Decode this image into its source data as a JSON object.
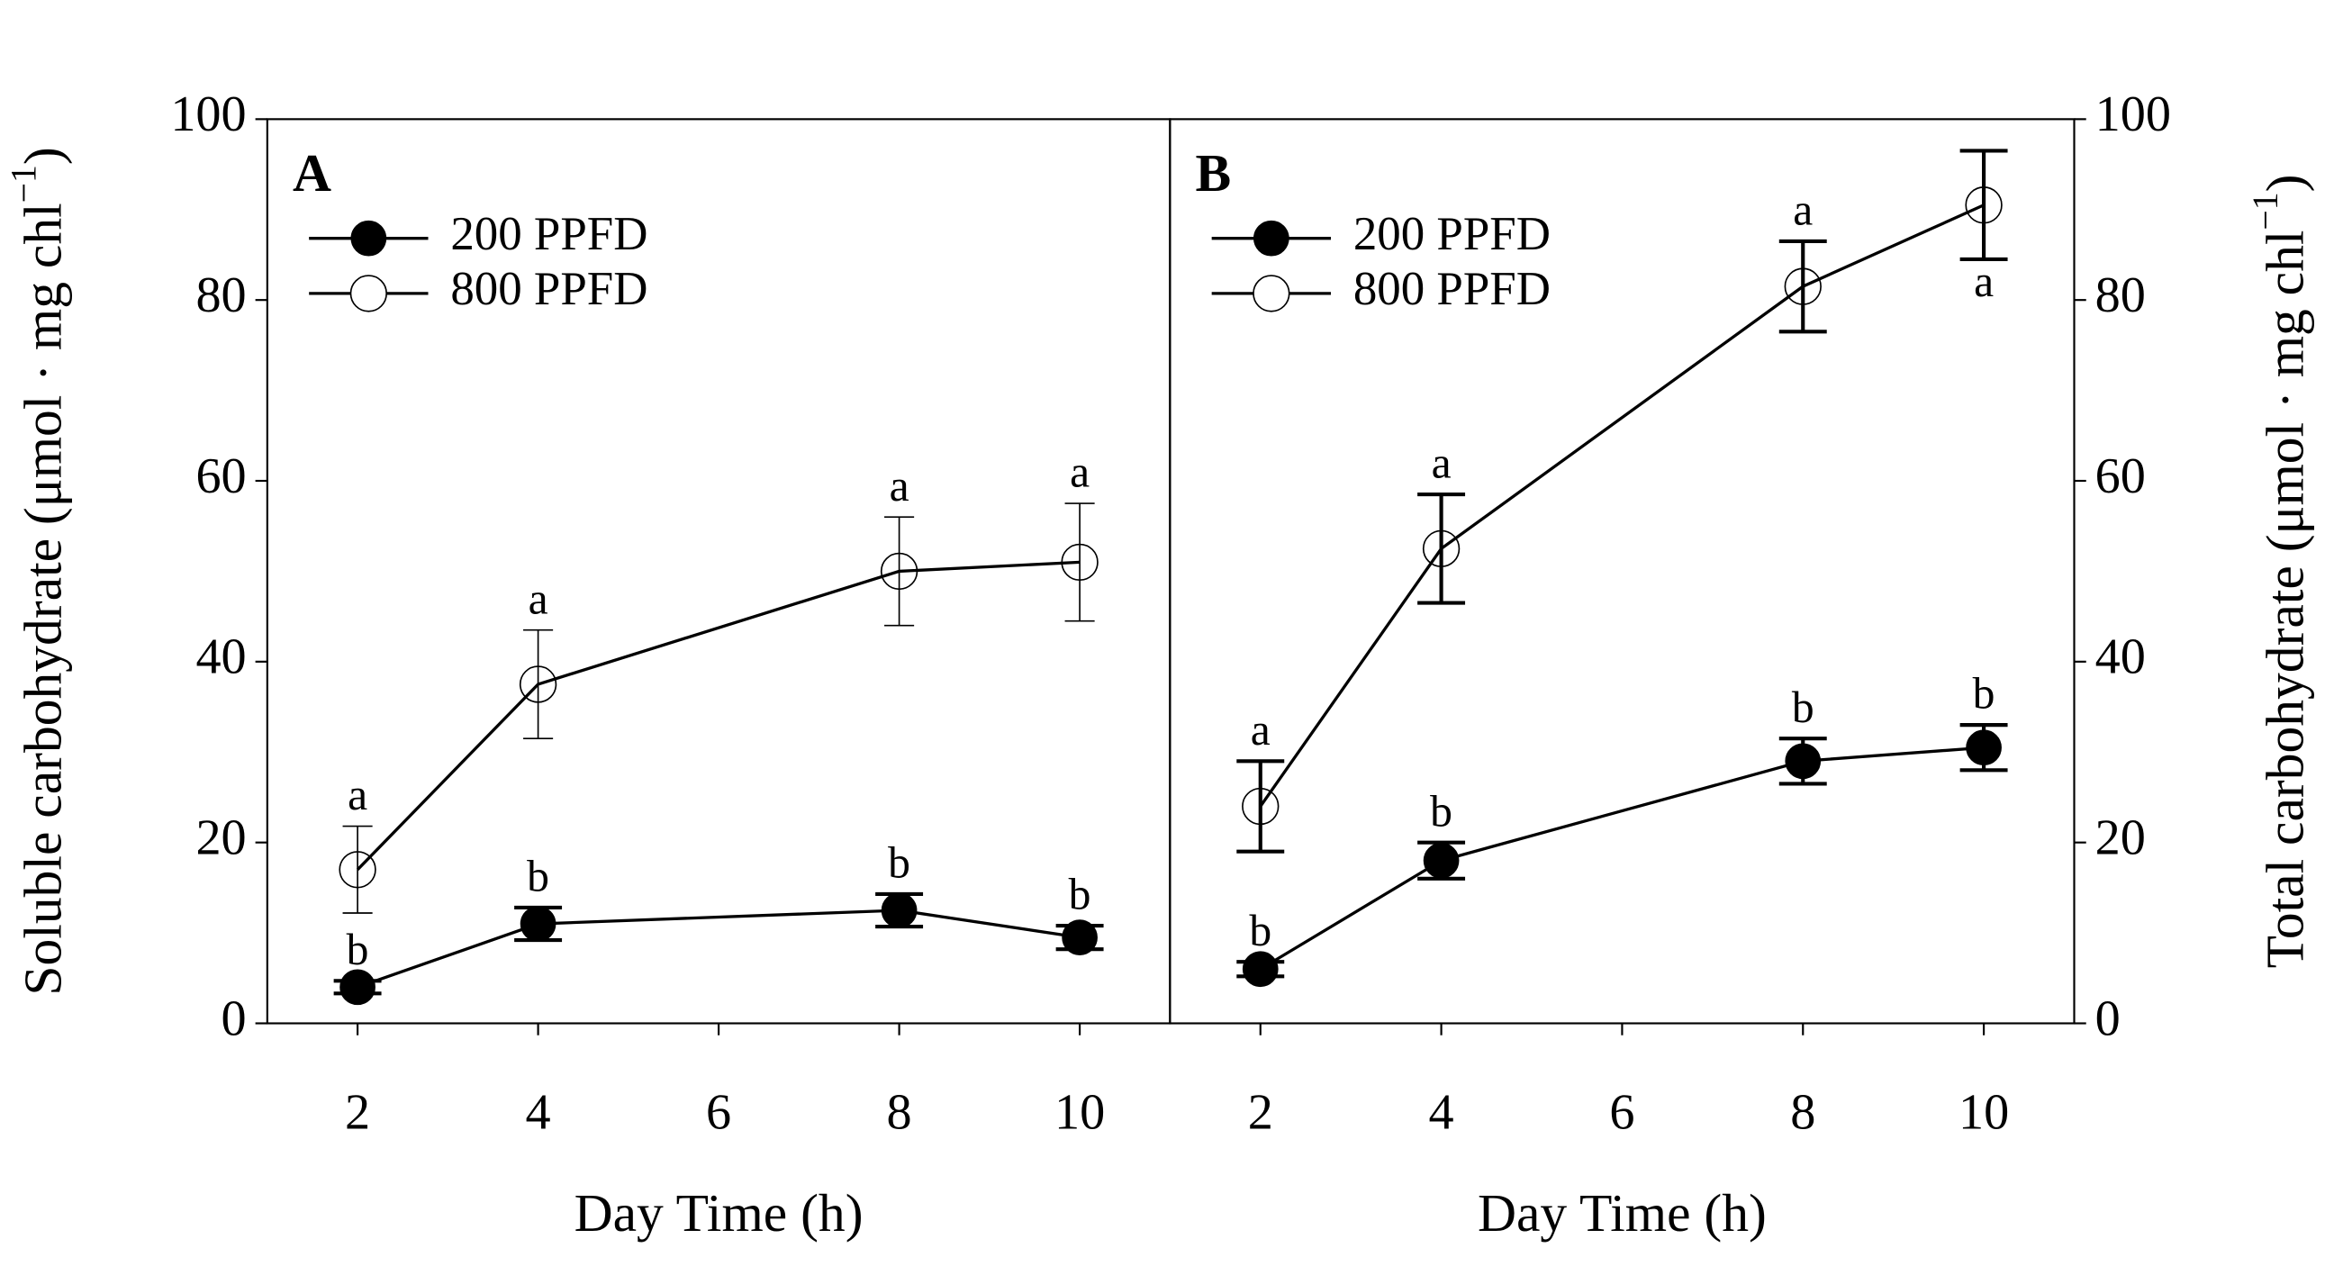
{
  "chart_data": [
    {
      "type": "line",
      "panel_label": "A",
      "xlabel": "Day Time (h)",
      "ylabel": "Soluble carbohydrate (μmol · mg chl",
      "ylabel_superscript": "−1",
      "y_axis_side": "left",
      "legend": "upper left",
      "x": [
        2,
        4,
        8,
        10
      ],
      "xlim": [
        1,
        11
      ],
      "xticks": [
        2,
        4,
        6,
        8,
        10
      ],
      "ylim": [
        0,
        100
      ],
      "yticks": [
        0,
        20,
        40,
        60,
        80,
        100
      ],
      "series": [
        {
          "name": "200 PPFD",
          "color": "#000000",
          "marker": "filled",
          "values": [
            4,
            11,
            12.5,
            9.5
          ],
          "errors": [
            0.7,
            1.8,
            1.8,
            1.3
          ],
          "letters": [
            "b",
            "b",
            "b",
            "b"
          ]
        },
        {
          "name": "800 PPFD",
          "color": "#000000",
          "marker": "open",
          "values": [
            17,
            37.5,
            50,
            51
          ],
          "errors": [
            4.8,
            6,
            6,
            6.5
          ],
          "letters": [
            "a",
            "a",
            "a",
            "a"
          ]
        }
      ]
    },
    {
      "type": "line",
      "panel_label": "B",
      "xlabel": "Day Time (h)",
      "ylabel": "Total carbohydrate (μmol · mg chl",
      "ylabel_superscript": "−1",
      "y_axis_side": "right",
      "legend": "upper left",
      "x": [
        2,
        4,
        8,
        10
      ],
      "xlim": [
        1,
        11
      ],
      "xticks": [
        2,
        4,
        6,
        8,
        10
      ],
      "ylim": [
        0,
        100
      ],
      "yticks": [
        0,
        20,
        40,
        60,
        80,
        100
      ],
      "series": [
        {
          "name": "200 PPFD",
          "color": "#000000",
          "marker": "filled",
          "values": [
            6,
            18,
            29,
            30.5
          ],
          "errors": [
            0.8,
            2,
            2.5,
            2.5
          ],
          "letters": [
            "b",
            "b",
            "b",
            "b"
          ]
        },
        {
          "name": "800 PPFD",
          "color": "#000000",
          "marker": "open",
          "values": [
            24,
            52.5,
            81.5,
            90.5
          ],
          "errors": [
            5,
            6,
            5,
            6
          ],
          "letters": [
            "a",
            "a",
            "a",
            "a"
          ]
        }
      ]
    }
  ]
}
